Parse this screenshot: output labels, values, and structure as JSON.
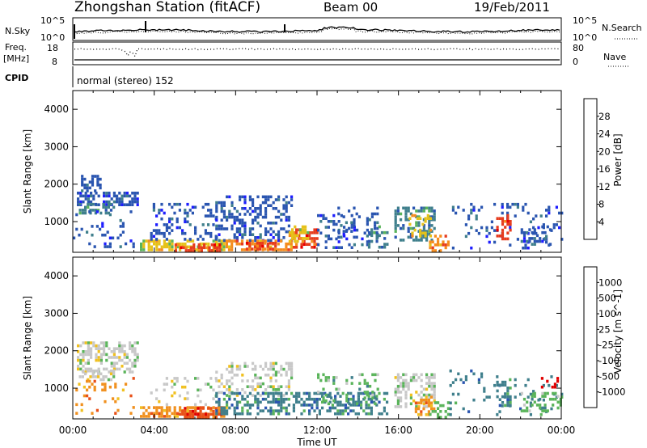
{
  "header": {
    "station": "Zhongshan Station (fitACF)",
    "beam": "Beam 00",
    "date": "19/Feb/2011"
  },
  "left_labels": {
    "nsky": "N.Sky",
    "freq": "Freq.",
    "mhz": "[MHz]",
    "cpid": "CPID",
    "nsky_top": "10^5",
    "nsky_bottom": "10^0",
    "freq_top": "18",
    "freq_bottom": "8"
  },
  "right_labels": {
    "nsearch": "N.Search",
    "nave": "Nave",
    "nsearch_top": "10^5",
    "nsearch_bottom": "10^0",
    "nave_top": "80",
    "nave_bottom": "0"
  },
  "cpid_text": "normal (stereo) 152",
  "x_axis": {
    "ticks": [
      "00:00",
      "04:00",
      "08:00",
      "12:00",
      "16:00",
      "20:00",
      "00:00"
    ],
    "label": "Time UT"
  },
  "chart_data": [
    {
      "type": "heatmap",
      "panel": "power",
      "ylabel": "Slant Range [km]",
      "yticks": [
        1000,
        2000,
        3000,
        4000
      ],
      "ylim": [
        180,
        4500
      ],
      "xlim_hours": [
        0,
        24
      ],
      "colorbar": {
        "label": "Power [dB]",
        "ticks": [
          "4",
          "8",
          "12",
          "16",
          "20",
          "24",
          "28"
        ],
        "colors": [
          "#1d1dff",
          "#2a55b0",
          "#3f7f8c",
          "#5ab45a",
          "#e6c21a",
          "#f58c1e",
          "#e63c1e",
          "#e80000"
        ]
      },
      "regions": [
        {
          "t": [
            0.2,
            3.2
          ],
          "r": [
            1450,
            1800
          ],
          "level": 1,
          "density": 0.55
        },
        {
          "t": [
            0.4,
            1.4
          ],
          "r": [
            1800,
            2250
          ],
          "level": 1,
          "density": 0.5
        },
        {
          "t": [
            0.3,
            2.0
          ],
          "r": [
            1200,
            1500
          ],
          "level": 2,
          "density": 0.55
        },
        {
          "t": [
            0.0,
            3.0
          ],
          "r": [
            300,
            1300
          ],
          "level": 1,
          "density": 0.14
        },
        {
          "t": [
            3.3,
            7.5
          ],
          "r": [
            250,
            520
          ],
          "level": 4,
          "density": 0.6
        },
        {
          "t": [
            5.0,
            7.2
          ],
          "r": [
            260,
            420
          ],
          "level": 6,
          "density": 0.7
        },
        {
          "t": [
            3.8,
            7.0
          ],
          "r": [
            550,
            1500
          ],
          "level": 1,
          "density": 0.25
        },
        {
          "t": [
            7.0,
            10.8
          ],
          "r": [
            500,
            1700
          ],
          "level": 1,
          "density": 0.35
        },
        {
          "t": [
            7.5,
            10.8
          ],
          "r": [
            280,
            520
          ],
          "level": 5,
          "density": 0.55
        },
        {
          "t": [
            8.5,
            10.0
          ],
          "r": [
            300,
            460
          ],
          "level": 6,
          "density": 0.6
        },
        {
          "t": [
            10.8,
            12.0
          ],
          "r": [
            300,
            820
          ],
          "level": 6,
          "density": 0.6
        },
        {
          "t": [
            10.6,
            11.5
          ],
          "r": [
            500,
            900
          ],
          "level": 4,
          "density": 0.45
        },
        {
          "t": [
            12.0,
            14.5
          ],
          "r": [
            300,
            1200
          ],
          "level": 1,
          "density": 0.28
        },
        {
          "t": [
            13.0,
            15.0
          ],
          "r": [
            600,
            1400
          ],
          "level": 1,
          "density": 0.22
        },
        {
          "t": [
            14.5,
            15.5
          ],
          "r": [
            300,
            900
          ],
          "level": 2,
          "density": 0.35
        },
        {
          "t": [
            15.8,
            17.8
          ],
          "r": [
            500,
            1400
          ],
          "level": 2,
          "density": 0.5
        },
        {
          "t": [
            16.5,
            17.6
          ],
          "r": [
            600,
            1200
          ],
          "level": 4,
          "density": 0.35
        },
        {
          "t": [
            17.5,
            18.5
          ],
          "r": [
            250,
            650
          ],
          "level": 5,
          "density": 0.5
        },
        {
          "t": [
            18.5,
            24.0
          ],
          "r": [
            300,
            1500
          ],
          "level": 1,
          "density": 0.12
        },
        {
          "t": [
            20.8,
            21.5
          ],
          "r": [
            550,
            1200
          ],
          "level": 6,
          "density": 0.45
        },
        {
          "t": [
            22.0,
            23.5
          ],
          "r": [
            400,
            900
          ],
          "level": 1,
          "density": 0.3
        }
      ]
    },
    {
      "type": "heatmap",
      "panel": "velocity",
      "ylabel": "Slant Range [km]",
      "yticks": [
        1000,
        2000,
        3000,
        4000
      ],
      "ylim": [
        180,
        4500
      ],
      "xlim_hours": [
        0,
        24
      ],
      "colorbar": {
        "label": "Velocity [m s^-1]",
        "ticks": [
          "1000",
          "500",
          "100",
          "25",
          "-25",
          "-100",
          "-500",
          "-1000"
        ],
        "colors": [
          "#1d1dcc",
          "#2a55b0",
          "#3f7f8c",
          "#5ab45a",
          "#c8c8c8",
          "#f0c020",
          "#f0901e",
          "#e85018",
          "#e00000"
        ]
      },
      "regions": [
        {
          "t": [
            0.2,
            3.2
          ],
          "r": [
            1450,
            2250
          ],
          "level": 4,
          "density": 0.5
        },
        {
          "t": [
            0.3,
            2.0
          ],
          "r": [
            1200,
            1500
          ],
          "level": 4,
          "density": 0.45
        },
        {
          "t": [
            0.0,
            3.0
          ],
          "r": [
            300,
            1300
          ],
          "level": 6,
          "density": 0.14
        },
        {
          "t": [
            3.3,
            7.5
          ],
          "r": [
            250,
            520
          ],
          "level": 6,
          "density": 0.6
        },
        {
          "t": [
            5.2,
            7.4
          ],
          "r": [
            260,
            500
          ],
          "level": 7,
          "density": 0.55
        },
        {
          "t": [
            3.8,
            7.0
          ],
          "r": [
            550,
            1300
          ],
          "level": 4,
          "density": 0.15
        },
        {
          "t": [
            7.0,
            10.8
          ],
          "r": [
            800,
            1700
          ],
          "level": 4,
          "density": 0.35
        },
        {
          "t": [
            7.0,
            10.8
          ],
          "r": [
            300,
            900
          ],
          "level": 2,
          "density": 0.45
        },
        {
          "t": [
            10.8,
            15.5
          ],
          "r": [
            300,
            900
          ],
          "level": 2,
          "density": 0.45
        },
        {
          "t": [
            12.0,
            15.0
          ],
          "r": [
            600,
            1400
          ],
          "level": 3,
          "density": 0.22
        },
        {
          "t": [
            15.8,
            17.8
          ],
          "r": [
            500,
            1400
          ],
          "level": 4,
          "density": 0.45
        },
        {
          "t": [
            16.8,
            17.8
          ],
          "r": [
            300,
            800
          ],
          "level": 6,
          "density": 0.4
        },
        {
          "t": [
            17.5,
            18.5
          ],
          "r": [
            250,
            650
          ],
          "level": 3,
          "density": 0.4
        },
        {
          "t": [
            18.5,
            24.0
          ],
          "r": [
            300,
            1500
          ],
          "level": 2,
          "density": 0.12
        },
        {
          "t": [
            20.8,
            21.5
          ],
          "r": [
            550,
            1200
          ],
          "level": 2,
          "density": 0.45
        },
        {
          "t": [
            22.0,
            24.0
          ],
          "r": [
            400,
            900
          ],
          "level": 3,
          "density": 0.45
        },
        {
          "t": [
            23.0,
            24.0
          ],
          "r": [
            1000,
            1300
          ],
          "level": 8,
          "density": 0.35
        }
      ]
    }
  ]
}
